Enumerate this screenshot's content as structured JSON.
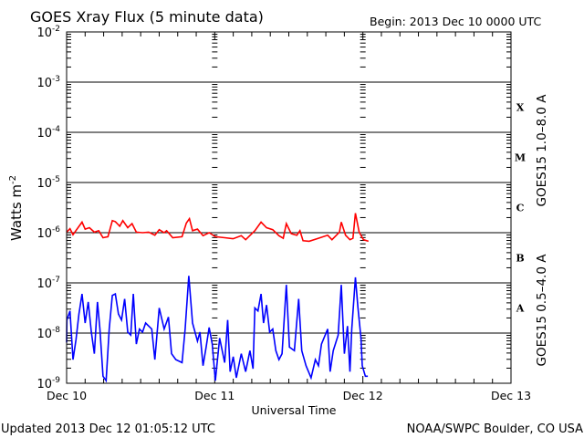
{
  "chart_data": {
    "type": "line",
    "title": "GOES Xray Flux (5 minute data)",
    "begin_label": "Begin:  2013 Dec 10 0000 UTC",
    "xlabel": "Universal Time",
    "ylabel": "Watts m",
    "ylabel_sup": "-2",
    "x_unit": "hours since 2013 Dec 10 0000 UTC",
    "xlim": [
      0,
      72
    ],
    "x_ticks": [
      {
        "hours": 0,
        "label": "Dec 10"
      },
      {
        "hours": 24,
        "label": "Dec 11"
      },
      {
        "hours": 48,
        "label": "Dec 12"
      },
      {
        "hours": 72,
        "label": "Dec 13"
      }
    ],
    "y_scale": "log",
    "ylim_log10": [
      -9,
      -2
    ],
    "y_ticks": [
      {
        "base": "10",
        "exp": "-2"
      },
      {
        "base": "10",
        "exp": "-3"
      },
      {
        "base": "10",
        "exp": "-4"
      },
      {
        "base": "10",
        "exp": "-5"
      },
      {
        "base": "10",
        "exp": "-6"
      },
      {
        "base": "10",
        "exp": "-7"
      },
      {
        "base": "10",
        "exp": "-8"
      },
      {
        "base": "10",
        "exp": "-9"
      }
    ],
    "flare_classes": [
      {
        "label": "X",
        "log10_min": -4
      },
      {
        "label": "M",
        "log10_min": -5
      },
      {
        "label": "C",
        "log10_min": -6
      },
      {
        "label": "B",
        "log10_min": -7
      },
      {
        "label": "A",
        "log10_min": -8
      }
    ],
    "grid": "horizontal lines at each decade from 1e-3 to 1e-8",
    "series": [
      {
        "name": "GOES15 1.0–8.0 A",
        "color": "#ff0000",
        "hours": [
          0,
          0.54,
          1.03,
          2.5,
          3.0,
          3.7,
          4.5,
          5.2,
          5.9,
          6.7,
          7.4,
          7.9,
          8.6,
          9.1,
          9.9,
          10.6,
          11.3,
          12.3,
          13.3,
          14.3,
          15.0,
          15.8,
          16.2,
          17.2,
          18.7,
          19.4,
          19.9,
          20.4,
          21.2,
          22.1,
          23.1,
          24.1,
          25.6,
          27.0,
          28.3,
          29.0,
          30.5,
          31.5,
          32.4,
          33.4,
          34.4,
          35.1,
          35.6,
          36.4,
          37.3,
          37.8,
          38.3,
          39.3,
          40.8,
          42.3,
          43.0,
          44.2,
          44.5,
          45.2,
          45.9,
          46.4,
          46.8,
          47.4,
          48.1,
          48.9
        ],
        "log10_flux": [
          -5.99,
          -5.92,
          -6.04,
          -5.79,
          -5.93,
          -5.9,
          -5.99,
          -5.96,
          -6.1,
          -6.08,
          -5.76,
          -5.78,
          -5.87,
          -5.76,
          -5.9,
          -5.82,
          -5.99,
          -6.0,
          -5.99,
          -6.05,
          -5.94,
          -6.0,
          -5.96,
          -6.1,
          -6.08,
          -5.81,
          -5.72,
          -5.96,
          -5.93,
          -6.06,
          -6.0,
          -6.08,
          -6.1,
          -6.12,
          -6.06,
          -6.14,
          -5.96,
          -5.79,
          -5.9,
          -5.94,
          -6.06,
          -6.11,
          -5.82,
          -6.02,
          -6.05,
          -5.96,
          -6.16,
          -6.17,
          -6.11,
          -6.05,
          -6.14,
          -5.99,
          -5.79,
          -6.05,
          -6.14,
          -6.11,
          -5.61,
          -5.99,
          -6.14,
          -6.17
        ]
      },
      {
        "name": "GOES15 0.5–4.0 A",
        "color": "#0000ff",
        "hours": [
          0,
          0.05,
          0.54,
          1.03,
          1.52,
          2.0,
          2.5,
          3.0,
          3.5,
          4.0,
          4.5,
          5.0,
          5.4,
          5.9,
          6.4,
          6.9,
          7.4,
          7.9,
          8.4,
          8.9,
          9.4,
          9.9,
          10.4,
          10.8,
          11.3,
          11.8,
          12.3,
          12.8,
          13.8,
          14.3,
          15.0,
          15.8,
          16.5,
          17.0,
          17.7,
          18.7,
          19.2,
          19.8,
          20.4,
          21.2,
          21.6,
          22.1,
          22.6,
          23.1,
          23.6,
          24.1,
          24.8,
          25.6,
          26.1,
          26.5,
          27.0,
          27.5,
          28.3,
          29.0,
          29.7,
          30.2,
          30.5,
          31.0,
          31.5,
          31.9,
          32.4,
          32.9,
          33.4,
          33.9,
          34.4,
          34.9,
          35.6,
          36.1,
          36.9,
          37.6,
          38.1,
          38.8,
          39.6,
          40.3,
          40.8,
          41.3,
          42.3,
          42.7,
          43.2,
          44.0,
          44.5,
          45.0,
          45.5,
          45.9,
          46.2,
          46.8,
          47.2,
          47.7,
          47.9,
          48.4,
          48.8
        ],
        "log10_flux": [
          -8.19,
          -7.74,
          -7.56,
          -8.53,
          -8.13,
          -7.62,
          -7.22,
          -7.8,
          -7.38,
          -7.98,
          -8.41,
          -7.38,
          -7.92,
          -8.86,
          -8.95,
          -7.92,
          -7.25,
          -7.22,
          -7.62,
          -7.74,
          -7.32,
          -7.98,
          -8.04,
          -7.22,
          -8.22,
          -7.92,
          -7.98,
          -7.8,
          -7.92,
          -8.53,
          -7.5,
          -7.92,
          -7.68,
          -8.41,
          -8.53,
          -8.59,
          -7.92,
          -6.86,
          -7.8,
          -8.16,
          -7.98,
          -8.65,
          -8.28,
          -7.89,
          -8.22,
          -8.95,
          -8.1,
          -8.59,
          -7.74,
          -8.77,
          -8.47,
          -8.89,
          -8.41,
          -8.77,
          -8.35,
          -8.71,
          -7.5,
          -7.56,
          -7.22,
          -7.8,
          -7.44,
          -7.98,
          -7.92,
          -8.35,
          -8.53,
          -8.41,
          -7.04,
          -8.28,
          -8.35,
          -7.32,
          -8.35,
          -8.65,
          -8.89,
          -8.53,
          -8.65,
          -8.22,
          -7.92,
          -8.77,
          -8.35,
          -8.04,
          -7.04,
          -8.41,
          -7.86,
          -8.77,
          -7.92,
          -6.89,
          -7.5,
          -8.1,
          -8.65,
          -8.86,
          -8.86
        ]
      }
    ]
  },
  "footer": {
    "updated": "Updated 2013 Dec 12 01:05:12 UTC",
    "credit": "NOAA/SWPC Boulder, CO USA"
  }
}
